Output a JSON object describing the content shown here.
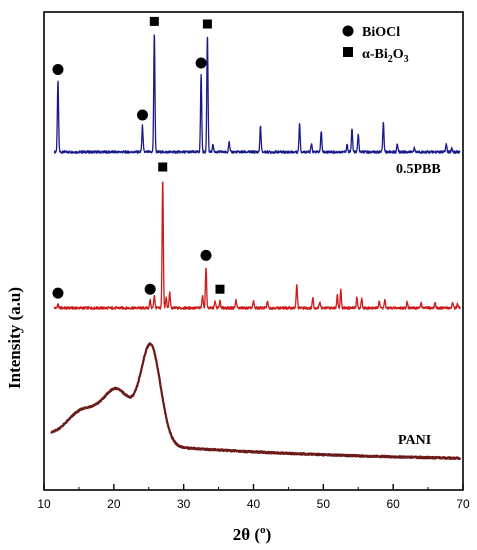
{
  "chart_data": {
    "type": "line",
    "xlabel": "2θ (o)",
    "xlabel_main": "2θ (",
    "xlabel_sup": "o",
    "xlabel_close": ")",
    "ylabel": "Intensity (a.u)",
    "xlim": [
      10,
      70
    ],
    "xticks": [
      "10",
      "20",
      "30",
      "40",
      "50",
      "60",
      "70"
    ],
    "legend": {
      "placement": "top-right",
      "items": [
        {
          "marker": "circle",
          "label": "BiOCl"
        },
        {
          "marker": "square",
          "label_prefix": "α-Bi",
          "label_sub1": "2",
          "label_mid": "O",
          "label_sub2": "3"
        }
      ]
    },
    "series": [
      {
        "name": "0.5PBB",
        "color": "#1a1a8c",
        "baseline": 0.93,
        "peaks": [
          [
            12.0,
            0.55
          ],
          [
            24.1,
            0.2
          ],
          [
            25.8,
            0.92
          ],
          [
            32.5,
            0.6
          ],
          [
            33.4,
            0.9
          ],
          [
            34.2,
            0.06
          ],
          [
            36.5,
            0.08
          ],
          [
            41.0,
            0.2
          ],
          [
            46.6,
            0.22
          ],
          [
            48.3,
            0.06
          ],
          [
            49.7,
            0.16
          ],
          [
            53.4,
            0.06
          ],
          [
            54.1,
            0.18
          ],
          [
            55.0,
            0.14
          ],
          [
            58.6,
            0.23
          ],
          [
            60.6,
            0.06
          ],
          [
            63.0,
            0.03
          ],
          [
            67.6,
            0.06
          ],
          [
            68.4,
            0.03
          ]
        ]
      },
      {
        "name": "BiOCl / α-Bi2O3 reference",
        "color": "#cc1a1a",
        "baseline": 0.0,
        "peaks": [
          [
            12.0,
            0.03
          ],
          [
            25.2,
            0.06
          ],
          [
            25.8,
            0.1
          ],
          [
            27.0,
            1.0
          ],
          [
            27.5,
            0.08
          ],
          [
            28.0,
            0.12
          ],
          [
            32.7,
            0.1
          ],
          [
            33.2,
            0.32
          ],
          [
            34.5,
            0.05
          ],
          [
            35.2,
            0.06
          ],
          [
            37.5,
            0.06
          ],
          [
            40.0,
            0.05
          ],
          [
            42.0,
            0.05
          ],
          [
            46.2,
            0.18
          ],
          [
            48.5,
            0.08
          ],
          [
            49.5,
            0.05
          ],
          [
            52.0,
            0.1
          ],
          [
            52.5,
            0.14
          ],
          [
            54.8,
            0.08
          ],
          [
            55.5,
            0.07
          ],
          [
            58.0,
            0.06
          ],
          [
            58.8,
            0.06
          ],
          [
            62.0,
            0.05
          ],
          [
            64.0,
            0.04
          ],
          [
            66.0,
            0.04
          ],
          [
            68.5,
            0.04
          ],
          [
            69.2,
            0.03
          ]
        ]
      },
      {
        "name": "PANI",
        "color": "#6b1a1a",
        "shape": "broad",
        "humps": [
          [
            15.5,
            0.25,
            3.0
          ],
          [
            20.5,
            0.48,
            3.0
          ],
          [
            25.3,
            0.9,
            2.0
          ]
        ],
        "background": 0.15
      }
    ],
    "annotations": [
      {
        "text": "0.5PBB"
      },
      {
        "text": "PANI"
      }
    ],
    "peak_markers": [
      {
        "series": 0,
        "x": 12.0,
        "marker": "circle"
      },
      {
        "series": 0,
        "x": 24.1,
        "marker": "circle"
      },
      {
        "series": 0,
        "x": 25.8,
        "marker": "square"
      },
      {
        "series": 0,
        "x": 32.5,
        "marker": "circle"
      },
      {
        "series": 0,
        "x": 33.4,
        "marker": "square"
      },
      {
        "series": 1,
        "x": 12.0,
        "marker": "circle"
      },
      {
        "series": 1,
        "x": 25.2,
        "marker": "circle"
      },
      {
        "series": 1,
        "x": 27.0,
        "marker": "square"
      },
      {
        "series": 1,
        "x": 33.2,
        "marker": "circle"
      },
      {
        "series": 1,
        "x": 35.2,
        "marker": "square"
      }
    ]
  }
}
